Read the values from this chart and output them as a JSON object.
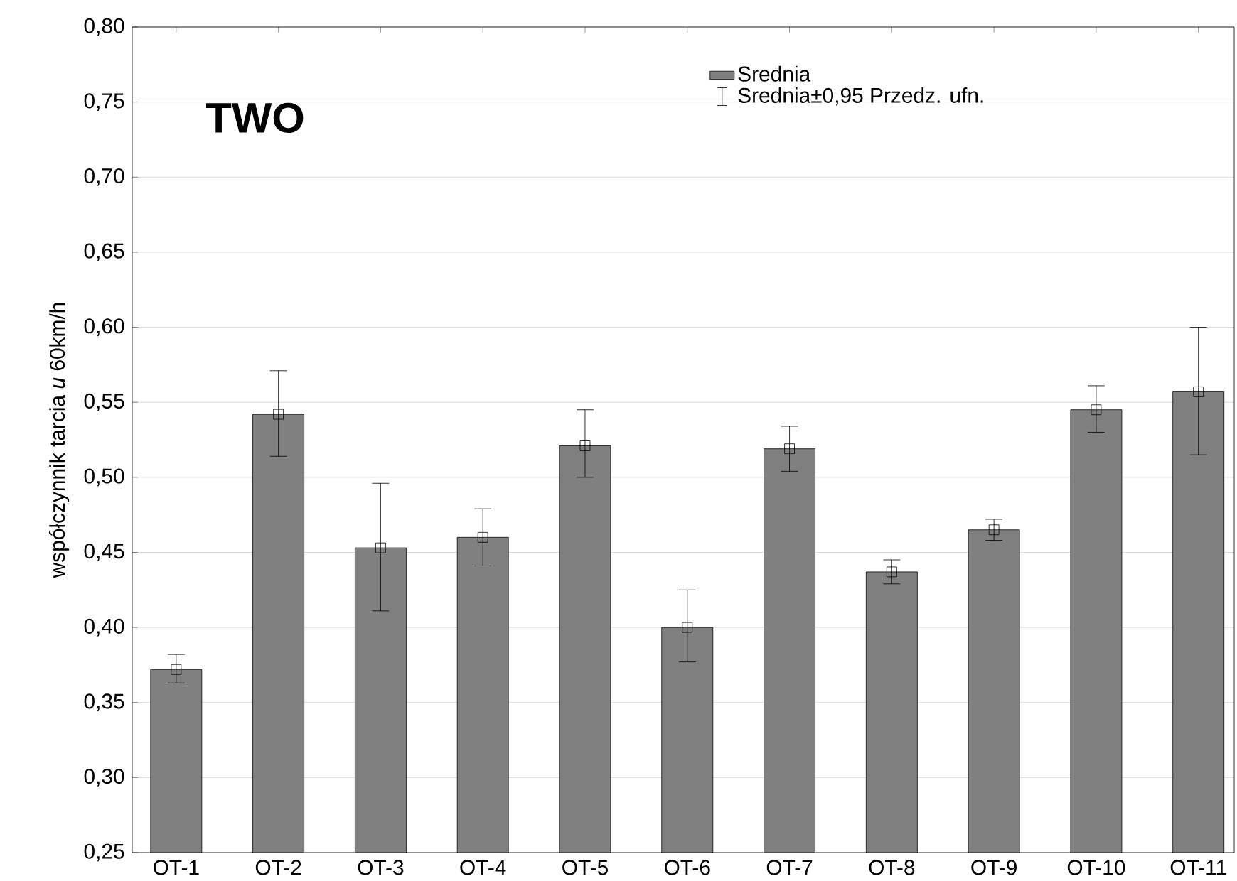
{
  "chart_data": {
    "type": "bar",
    "ylabel": "współczynnik tarcia *u* 60km/h",
    "categories": [
      "OT-1",
      "OT-2",
      "OT-3",
      "OT-4",
      "OT-5",
      "OT-6",
      "OT-7",
      "OT-8",
      "OT-9",
      "OT-10",
      "OT-11"
    ],
    "series": [
      {
        "name": "Srednia",
        "color": "#808080",
        "values": [
          0.372,
          0.542,
          0.453,
          0.46,
          0.521,
          0.4,
          0.519,
          0.437,
          0.465,
          0.545,
          0.557
        ],
        "errors": [
          [
            0.363,
            0.382
          ],
          [
            0.514,
            0.571
          ],
          [
            0.411,
            0.496
          ],
          [
            0.441,
            0.479
          ],
          [
            0.5,
            0.545
          ],
          [
            0.377,
            0.425
          ],
          [
            0.504,
            0.534
          ],
          [
            0.429,
            0.445
          ],
          [
            0.458,
            0.472
          ],
          [
            0.53,
            0.561
          ],
          [
            0.515,
            0.6
          ]
        ]
      },
      {
        "type": "scatter",
        "color": "#000000",
        "x": [
          "OT-1",
          "OT-2",
          "OT-3",
          "OT-4",
          "OT-5",
          "OT-6",
          "OT-7",
          "OT-8",
          "OT-9",
          "OT-10",
          "OT-11"
        ],
        "values": [
          0.372,
          0.542,
          0.453,
          0.46,
          0.521,
          0.4,
          0.519,
          0.437,
          0.465,
          0.545,
          0.557
        ]
      }
    ],
    "annotations": [
      "TWO",
      "Srednia±0,95 Przedz. ufn."
    ],
    "ylim": [
      0.25,
      0.8
    ],
    "yticks": [
      {
        "value": 0.25,
        "label": "0,25"
      },
      {
        "value": 0.3,
        "label": "0,30"
      },
      {
        "value": 0.35,
        "label": "0,35"
      },
      {
        "value": 0.4,
        "label": "0,40"
      },
      {
        "value": 0.45,
        "label": "0,45"
      },
      {
        "value": 0.5,
        "label": "0,50"
      },
      {
        "value": 0.55,
        "label": "0,55"
      },
      {
        "value": 0.6,
        "label": "0,60"
      },
      {
        "value": 0.65,
        "label": "0,65"
      },
      {
        "value": 0.7,
        "label": "0,70"
      },
      {
        "value": 0.75,
        "label": "0,75"
      },
      {
        "value": 0.8,
        "label": "0,80"
      }
    ],
    "grid": "y",
    "legend": "top right",
    "marker": "square"
  }
}
